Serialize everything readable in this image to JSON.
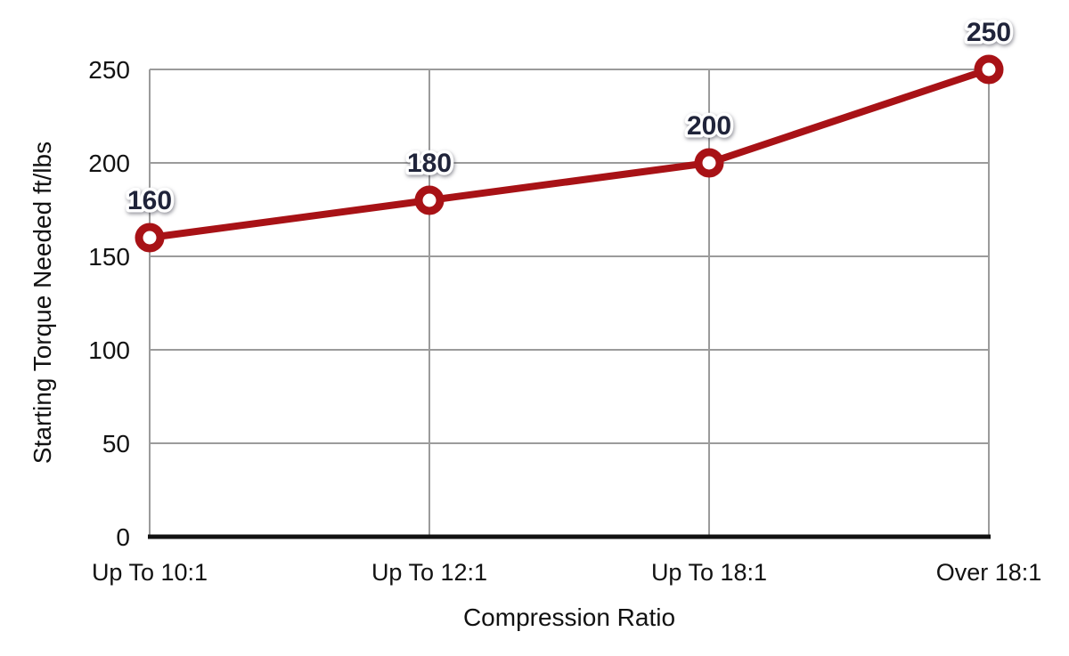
{
  "page": {
    "background": "#ffffff"
  },
  "chart_data": {
    "type": "line",
    "title": "",
    "categories": [
      "Up To 10:1",
      "Up To 12:1",
      "Up To 18:1",
      "Over 18:1"
    ],
    "series": [
      {
        "name": "Starting Torque Needed",
        "values": [
          160,
          180,
          200,
          250
        ]
      }
    ],
    "xlabel": "Compression Ratio",
    "ylabel": "Starting Torque Needed ft/lbs",
    "ylim": [
      0,
      250
    ],
    "yticks": [
      0,
      50,
      100,
      150,
      200,
      250
    ],
    "grid": "on",
    "legend_position": "none",
    "data_labels_shown": true,
    "colors": {
      "line": "#a81216",
      "marker_ring": "#a81216",
      "marker_fill": "#ffffff",
      "grid": "#9b9b9b",
      "axis_line": "#111111",
      "tick_text": "#121212",
      "data_label_text": "#20243a"
    }
  }
}
